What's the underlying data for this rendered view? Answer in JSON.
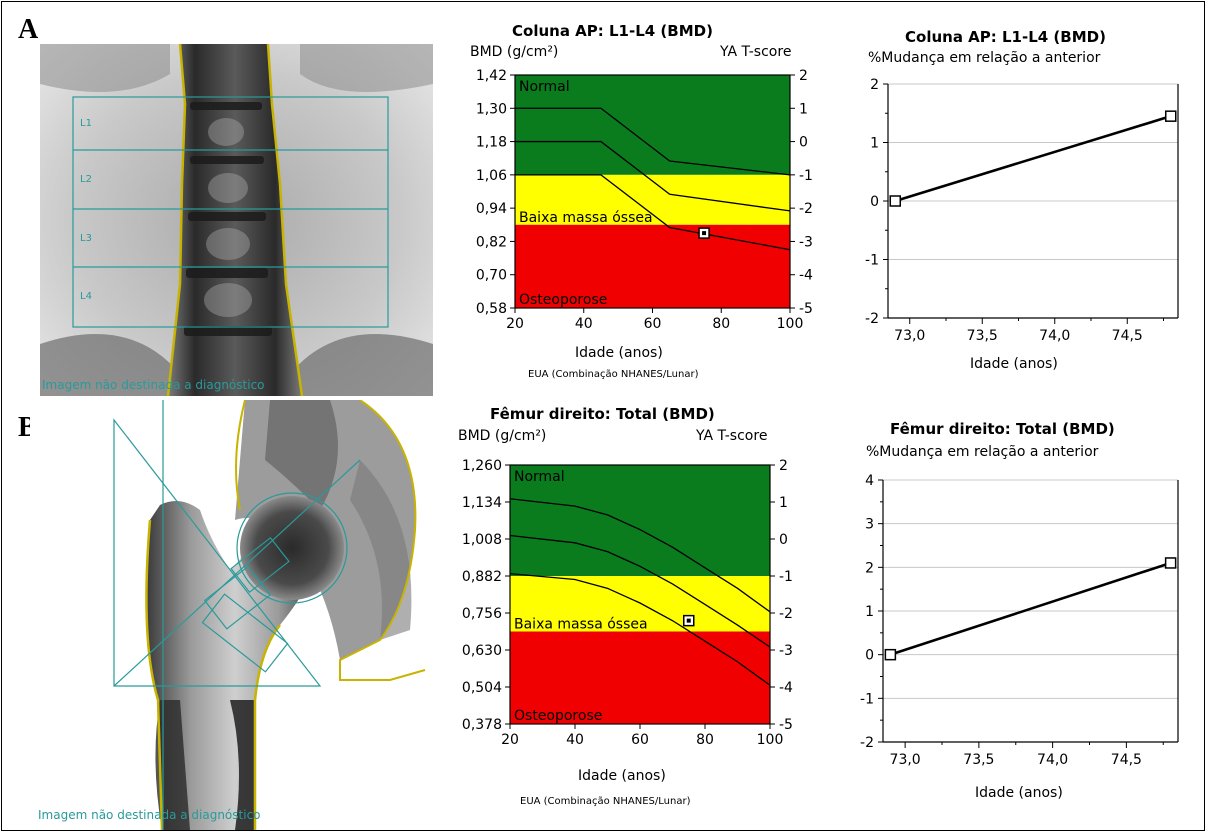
{
  "panels": [
    {
      "letter": "A",
      "scan": {
        "region_labels": [
          "L1",
          "L2",
          "L3",
          "L4"
        ],
        "caption": "Imagem não destinada a diagnóstico"
      },
      "bmd_chart": {
        "title": "Coluna AP: L1-L4 (BMD)",
        "ylabel": "BMD (g/cm²)",
        "y2label": "YA T-score",
        "xlabel": "Idade (anos)",
        "footnote": "EUA (Combinação NHANES/Lunar)",
        "zone_labels": [
          "Normal",
          "Baixa massa óssea",
          "Osteoporose"
        ]
      },
      "change_chart": {
        "title": "Coluna AP: L1-L4 (BMD)",
        "ylabel": "%Mudança em relação a anterior",
        "xlabel": "Idade (anos)"
      }
    },
    {
      "letter": "B",
      "scan": {
        "caption": "Imagem não destinada a diagnóstico"
      },
      "bmd_chart": {
        "title": "Fêmur direito: Total (BMD)",
        "ylabel": "BMD (g/cm²)",
        "y2label": "YA T-score",
        "xlabel": "Idade (anos)",
        "footnote": "EUA (Combinação NHANES/Lunar)",
        "zone_labels": [
          "Normal",
          "Baixa massa óssea",
          "Osteoporose"
        ]
      },
      "change_chart": {
        "title": "Fêmur direito: Total (BMD)",
        "ylabel": "%Mudança em relação a anterior",
        "xlabel": "Idade (anos)"
      }
    }
  ],
  "colors": {
    "normal": "#0a7c1e",
    "low_mass": "#ffff00",
    "osteoporosis": "#f00000",
    "scan_overlay": "#2a9a9a",
    "bone_outline": "#c8b400"
  },
  "chart_data": [
    {
      "type": "line",
      "title": "Coluna AP: L1-L4 (BMD)",
      "xlabel": "Idade (anos)",
      "ylabel": "BMD (g/cm²)",
      "y2label": "YA T-score",
      "xlim": [
        20,
        100
      ],
      "ylim": [
        0.58,
        1.42
      ],
      "y2lim": [
        -5,
        2
      ],
      "xticks": [
        "20",
        "40",
        "60",
        "80",
        "100"
      ],
      "yticks": [
        "0,58",
        "0,70",
        "0,82",
        "0,94",
        "1,06",
        "1,18",
        "1,30",
        "1,42"
      ],
      "y2ticks": [
        "-5",
        "-4",
        "-3",
        "-2",
        "-1",
        "0",
        "1",
        "2"
      ],
      "zones": [
        {
          "label": "Normal",
          "from": 1.06,
          "to": 1.42,
          "color": "#0a7c1e"
        },
        {
          "label": "Baixa massa óssea",
          "from": 0.88,
          "to": 1.06,
          "color": "#ffff00"
        },
        {
          "label": "Osteoporose",
          "from": 0.58,
          "to": 0.88,
          "color": "#f00000"
        }
      ],
      "series": [
        {
          "x": [
            20,
            45,
            65,
            100
          ],
          "values": [
            1.3,
            1.3,
            1.11,
            1.06
          ]
        },
        {
          "x": [
            20,
            45,
            65,
            100
          ],
          "values": [
            1.18,
            1.18,
            0.99,
            0.93
          ]
        },
        {
          "x": [
            20,
            45,
            65,
            100
          ],
          "values": [
            1.06,
            1.06,
            0.87,
            0.79
          ]
        }
      ],
      "points": [
        {
          "x": 75,
          "y": 0.85
        }
      ]
    },
    {
      "type": "line",
      "title": "Coluna AP: L1-L4 (BMD)",
      "xlabel": "Idade (anos)",
      "ylabel": "%Mudança em relação a anterior",
      "xlim": [
        72.85,
        74.85
      ],
      "ylim": [
        -2,
        2
      ],
      "xticks": [
        "73,0",
        "73,5",
        "74,0",
        "74,5"
      ],
      "yticks": [
        "-2",
        "-1",
        "0",
        "1",
        "2"
      ],
      "grid": true,
      "series": [
        {
          "x": [
            72.9,
            74.8
          ],
          "values": [
            0.0,
            1.45
          ]
        }
      ]
    },
    {
      "type": "line",
      "title": "Fêmur direito: Total (BMD)",
      "xlabel": "Idade (anos)",
      "ylabel": "BMD (g/cm²)",
      "y2label": "YA T-score",
      "xlim": [
        20,
        100
      ],
      "ylim": [
        0.378,
        1.26
      ],
      "y2lim": [
        -5,
        2
      ],
      "xticks": [
        "20",
        "40",
        "60",
        "80",
        "100"
      ],
      "yticks": [
        "0,378",
        "0,504",
        "0,630",
        "0,756",
        "0,882",
        "1,008",
        "1,134",
        "1,260"
      ],
      "y2ticks": [
        "-5",
        "-4",
        "-3",
        "-2",
        "-1",
        "0",
        "1",
        "2"
      ],
      "zones": [
        {
          "label": "Normal",
          "from": 0.882,
          "to": 1.26,
          "color": "#0a7c1e"
        },
        {
          "label": "Baixa massa óssea",
          "from": 0.693,
          "to": 0.882,
          "color": "#ffff00"
        },
        {
          "label": "Osteoporose",
          "from": 0.378,
          "to": 0.693,
          "color": "#f00000"
        }
      ],
      "series": [
        {
          "x": [
            20,
            40,
            50,
            60,
            70,
            80,
            90,
            100
          ],
          "values": [
            1.145,
            1.12,
            1.09,
            1.04,
            0.98,
            0.91,
            0.84,
            0.76
          ]
        },
        {
          "x": [
            20,
            40,
            50,
            60,
            70,
            80,
            90,
            100
          ],
          "values": [
            1.02,
            0.995,
            0.965,
            0.915,
            0.855,
            0.785,
            0.715,
            0.64
          ]
        },
        {
          "x": [
            20,
            40,
            50,
            60,
            70,
            80,
            90,
            100
          ],
          "values": [
            0.89,
            0.87,
            0.84,
            0.79,
            0.73,
            0.66,
            0.59,
            0.51
          ]
        }
      ],
      "points": [
        {
          "x": 75,
          "y": 0.73
        }
      ]
    },
    {
      "type": "line",
      "title": "Fêmur direito: Total (BMD)",
      "xlabel": "Idade (anos)",
      "ylabel": "%Mudança em relação a anterior",
      "xlim": [
        72.85,
        74.85
      ],
      "ylim": [
        -2,
        4
      ],
      "xticks": [
        "73,0",
        "73,5",
        "74,0",
        "74,5"
      ],
      "yticks": [
        "-2",
        "-1",
        "0",
        "1",
        "2",
        "3",
        "4"
      ],
      "grid": true,
      "series": [
        {
          "x": [
            72.9,
            74.8
          ],
          "values": [
            0.0,
            2.1
          ]
        }
      ]
    }
  ]
}
